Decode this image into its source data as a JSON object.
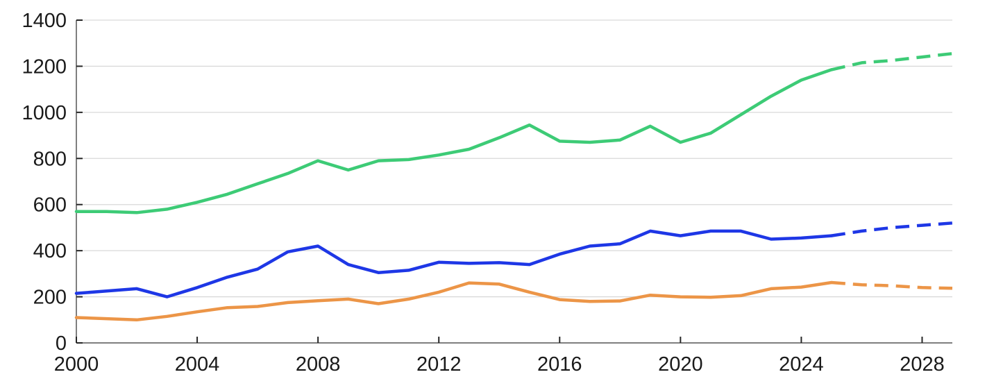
{
  "chart_data": {
    "type": "line",
    "title": "",
    "xlabel": "",
    "ylabel": "",
    "x": [
      2000,
      2001,
      2002,
      2003,
      2004,
      2005,
      2006,
      2007,
      2008,
      2009,
      2010,
      2011,
      2012,
      2013,
      2014,
      2015,
      2016,
      2017,
      2018,
      2019,
      2020,
      2021,
      2022,
      2023,
      2024,
      2025,
      2026,
      2027,
      2028,
      2029
    ],
    "series": [
      {
        "name": "green-series",
        "color": "#3dcb76",
        "dashed_from_x": 2025,
        "values": [
          570,
          570,
          565,
          580,
          610,
          645,
          690,
          735,
          790,
          750,
          790,
          795,
          815,
          840,
          890,
          945,
          875,
          870,
          880,
          940,
          870,
          910,
          990,
          1070,
          1140,
          1185,
          1215,
          1225,
          1240,
          1255
        ]
      },
      {
        "name": "blue-series",
        "color": "#1e37e6",
        "dashed_from_x": 2025,
        "values": [
          215,
          225,
          235,
          200,
          240,
          285,
          320,
          395,
          420,
          340,
          305,
          315,
          350,
          345,
          348,
          340,
          385,
          420,
          430,
          485,
          465,
          485,
          485,
          450,
          455,
          465,
          485,
          500,
          510,
          520
        ]
      },
      {
        "name": "orange-series",
        "color": "#ec9547",
        "dashed_from_x": 2025,
        "values": [
          110,
          105,
          100,
          115,
          135,
          153,
          158,
          175,
          183,
          190,
          170,
          190,
          220,
          260,
          255,
          220,
          188,
          180,
          182,
          207,
          200,
          198,
          205,
          235,
          242,
          262,
          252,
          248,
          240,
          237
        ]
      }
    ],
    "x_range": [
      2000,
      2029
    ],
    "ylim": [
      0,
      1400
    ],
    "y_ticks": [
      0,
      200,
      400,
      600,
      800,
      1000,
      1200,
      1400
    ],
    "y_tick_labels": [
      "0",
      "200",
      "400",
      "600",
      "800",
      "1000",
      "1200",
      "1400"
    ],
    "x_ticks": [
      2000,
      2004,
      2008,
      2012,
      2016,
      2020,
      2024,
      2028
    ],
    "x_tick_labels": [
      "2000",
      "2004",
      "2008",
      "2012",
      "2016",
      "2020",
      "2024",
      "2028"
    ],
    "grid": true,
    "legend": "none",
    "styles": {
      "background": "#ffffff",
      "grid_color": "#d9d9d9",
      "axis_color": "#7f7f7f",
      "tick_color": "#262626",
      "label_color": "#1a1a1a",
      "line_width": 4.5,
      "dash_pattern": "20 11"
    }
  }
}
